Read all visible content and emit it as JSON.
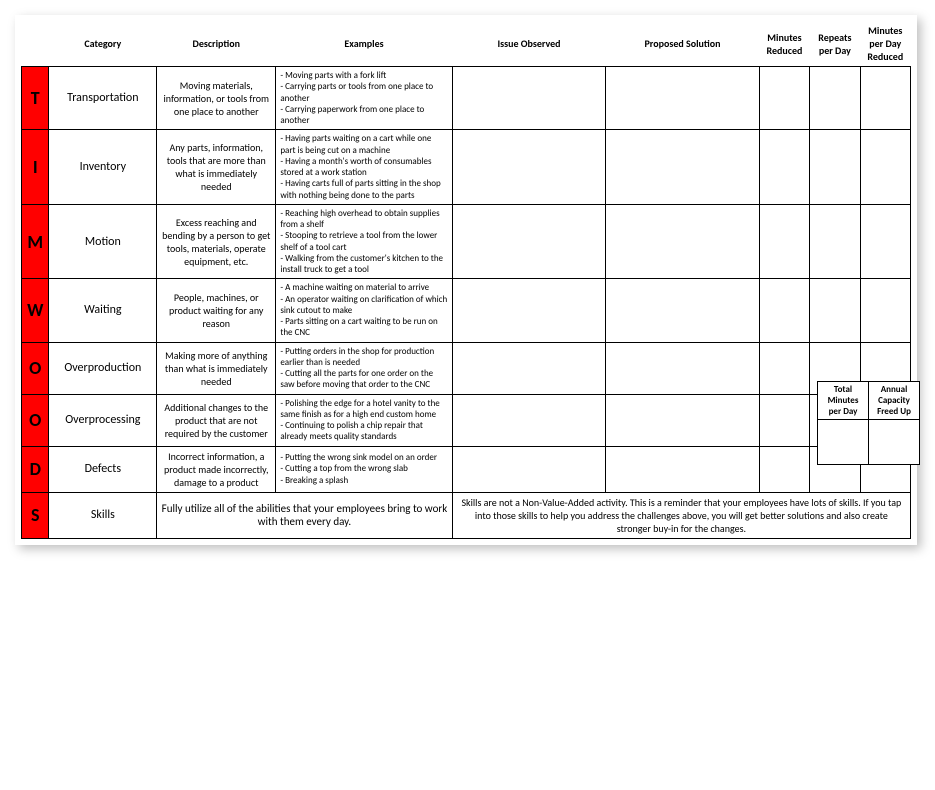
{
  "headers": {
    "category": "Category",
    "description": "Description",
    "examples": "Examples",
    "issue": "Issue Observed",
    "proposed": "Proposed Solution",
    "mins": "Minutes Reduced",
    "reps": "Repeats per Day",
    "mpd": "Minutes per Day Reduced"
  },
  "rows": [
    {
      "letter": "T",
      "category": "Transportation",
      "description": "Moving materials, information, or tools from one place to another",
      "examples": "- Moving parts with a fork lift\n- Carrying parts or tools from one place to another\n- Carrying paperwork from one place to another"
    },
    {
      "letter": "I",
      "category": "Inventory",
      "description": "Any parts, information, tools that are more than what is immediately needed",
      "examples": "- Having parts waiting on a cart while one part is being cut on a machine\n- Having a month's worth of consumables stored at a work station\n- Having carts full of parts sitting in the shop with nothing being done to the parts"
    },
    {
      "letter": "M",
      "category": "Motion",
      "description": "Excess reaching and bending by a person to get tools, materials, operate equipment, etc.",
      "examples": "- Reaching high overhead to obtain supplies from a shelf\n- Stooping to retrieve a tool from the lower shelf of a tool cart\n- Walking from the customer's kitchen to the install truck to get a tool"
    },
    {
      "letter": "W",
      "category": "Waiting",
      "description": "People, machines, or product waiting for any reason",
      "examples": "- A machine waiting on material to arrive\n- An operator waiting on clarification of which sink cutout to make\n- Parts sitting on a cart waiting to be run on the CNC"
    },
    {
      "letter": "O",
      "category": "Overproduction",
      "description": "Making more of anything than what is immediately needed",
      "examples": "- Putting orders in the shop for production earlier than is needed\n- Cutting all the parts for one order on the saw before moving that order to the CNC"
    },
    {
      "letter": "O",
      "category": "Overprocessing",
      "description": "Additional changes to the product that are not required by the customer",
      "examples": "- Polishing the edge for a hotel vanity to the same finish as for a high end custom home\n- Continuing to polish a chip repair that already meets quality standards"
    },
    {
      "letter": "D",
      "category": "Defects",
      "description": "Incorrect information, a product made incorrectly, damage to a product",
      "examples": "- Putting the wrong sink model on an order\n- Cutting a top from the wrong slab\n- Breaking a splash"
    }
  ],
  "skills": {
    "letter": "S",
    "category": "Skills",
    "description": "Fully utilize all of the abilities that your employees bring to work with them every day.",
    "note": "Skills are not a Non-Value-Added activity.  This is a reminder that your employees have lots of skills.  If you tap into those skills to help you address the challenges above, you will get better solutions and also create stronger buy-in for the changes."
  },
  "summary": {
    "col1": "Total Minutes per Day",
    "col2": "Annual Capacity Freed Up"
  },
  "colors": {
    "letter_bg": "#ff0000",
    "border": "#000000",
    "background": "#ffffff"
  }
}
